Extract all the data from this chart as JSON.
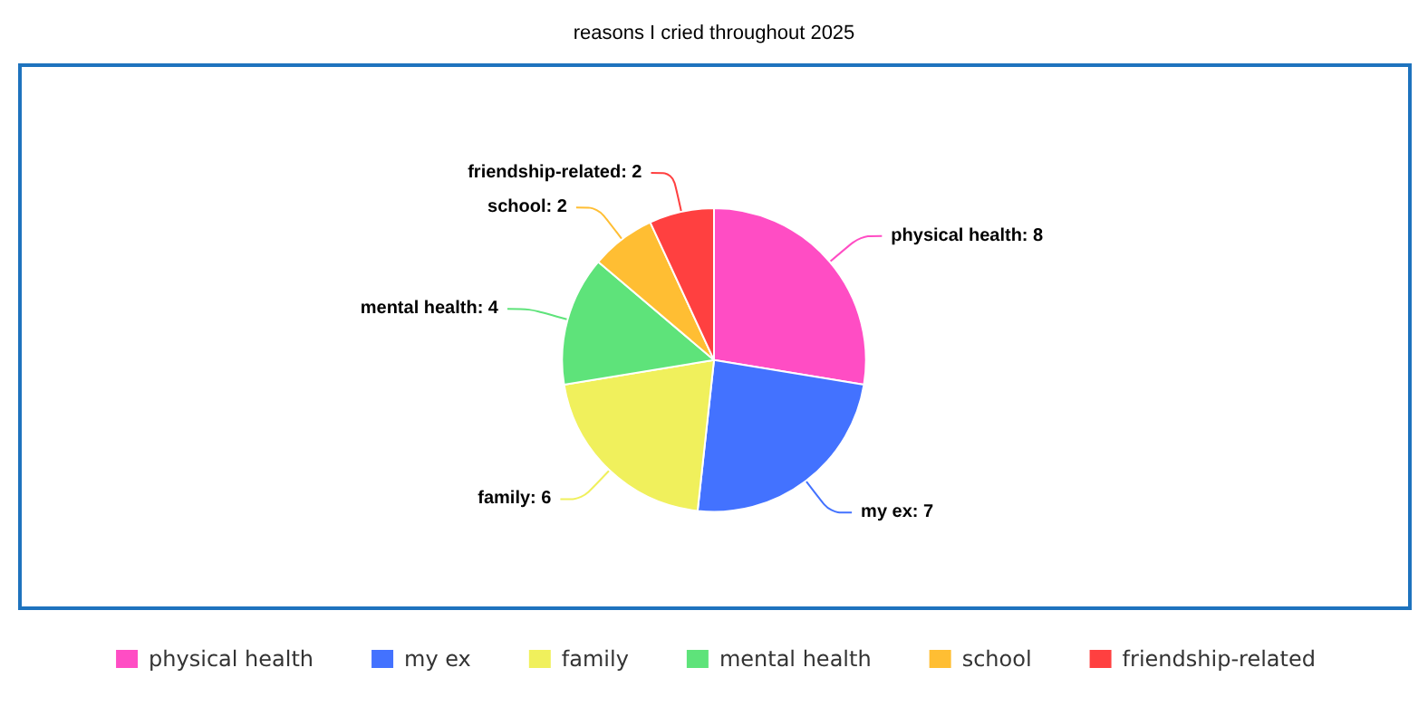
{
  "chart_data": {
    "type": "pie",
    "title": "reasons I cried throughout 2025",
    "categories": [
      "physical health",
      "my ex",
      "family",
      "mental health",
      "school",
      "friendship-related"
    ],
    "values": [
      8,
      7,
      6,
      4,
      2,
      2
    ],
    "colors": [
      "#ff4dc4",
      "#4372ff",
      "#f0f05c",
      "#5ee37a",
      "#ffbe33",
      "#ff4040"
    ],
    "value_labels": [
      "physical health: 8",
      "my ex: 7",
      "family: 6",
      "mental health: 4",
      "school: 2",
      "friendship-related: 2"
    ],
    "legend": "bottom"
  }
}
